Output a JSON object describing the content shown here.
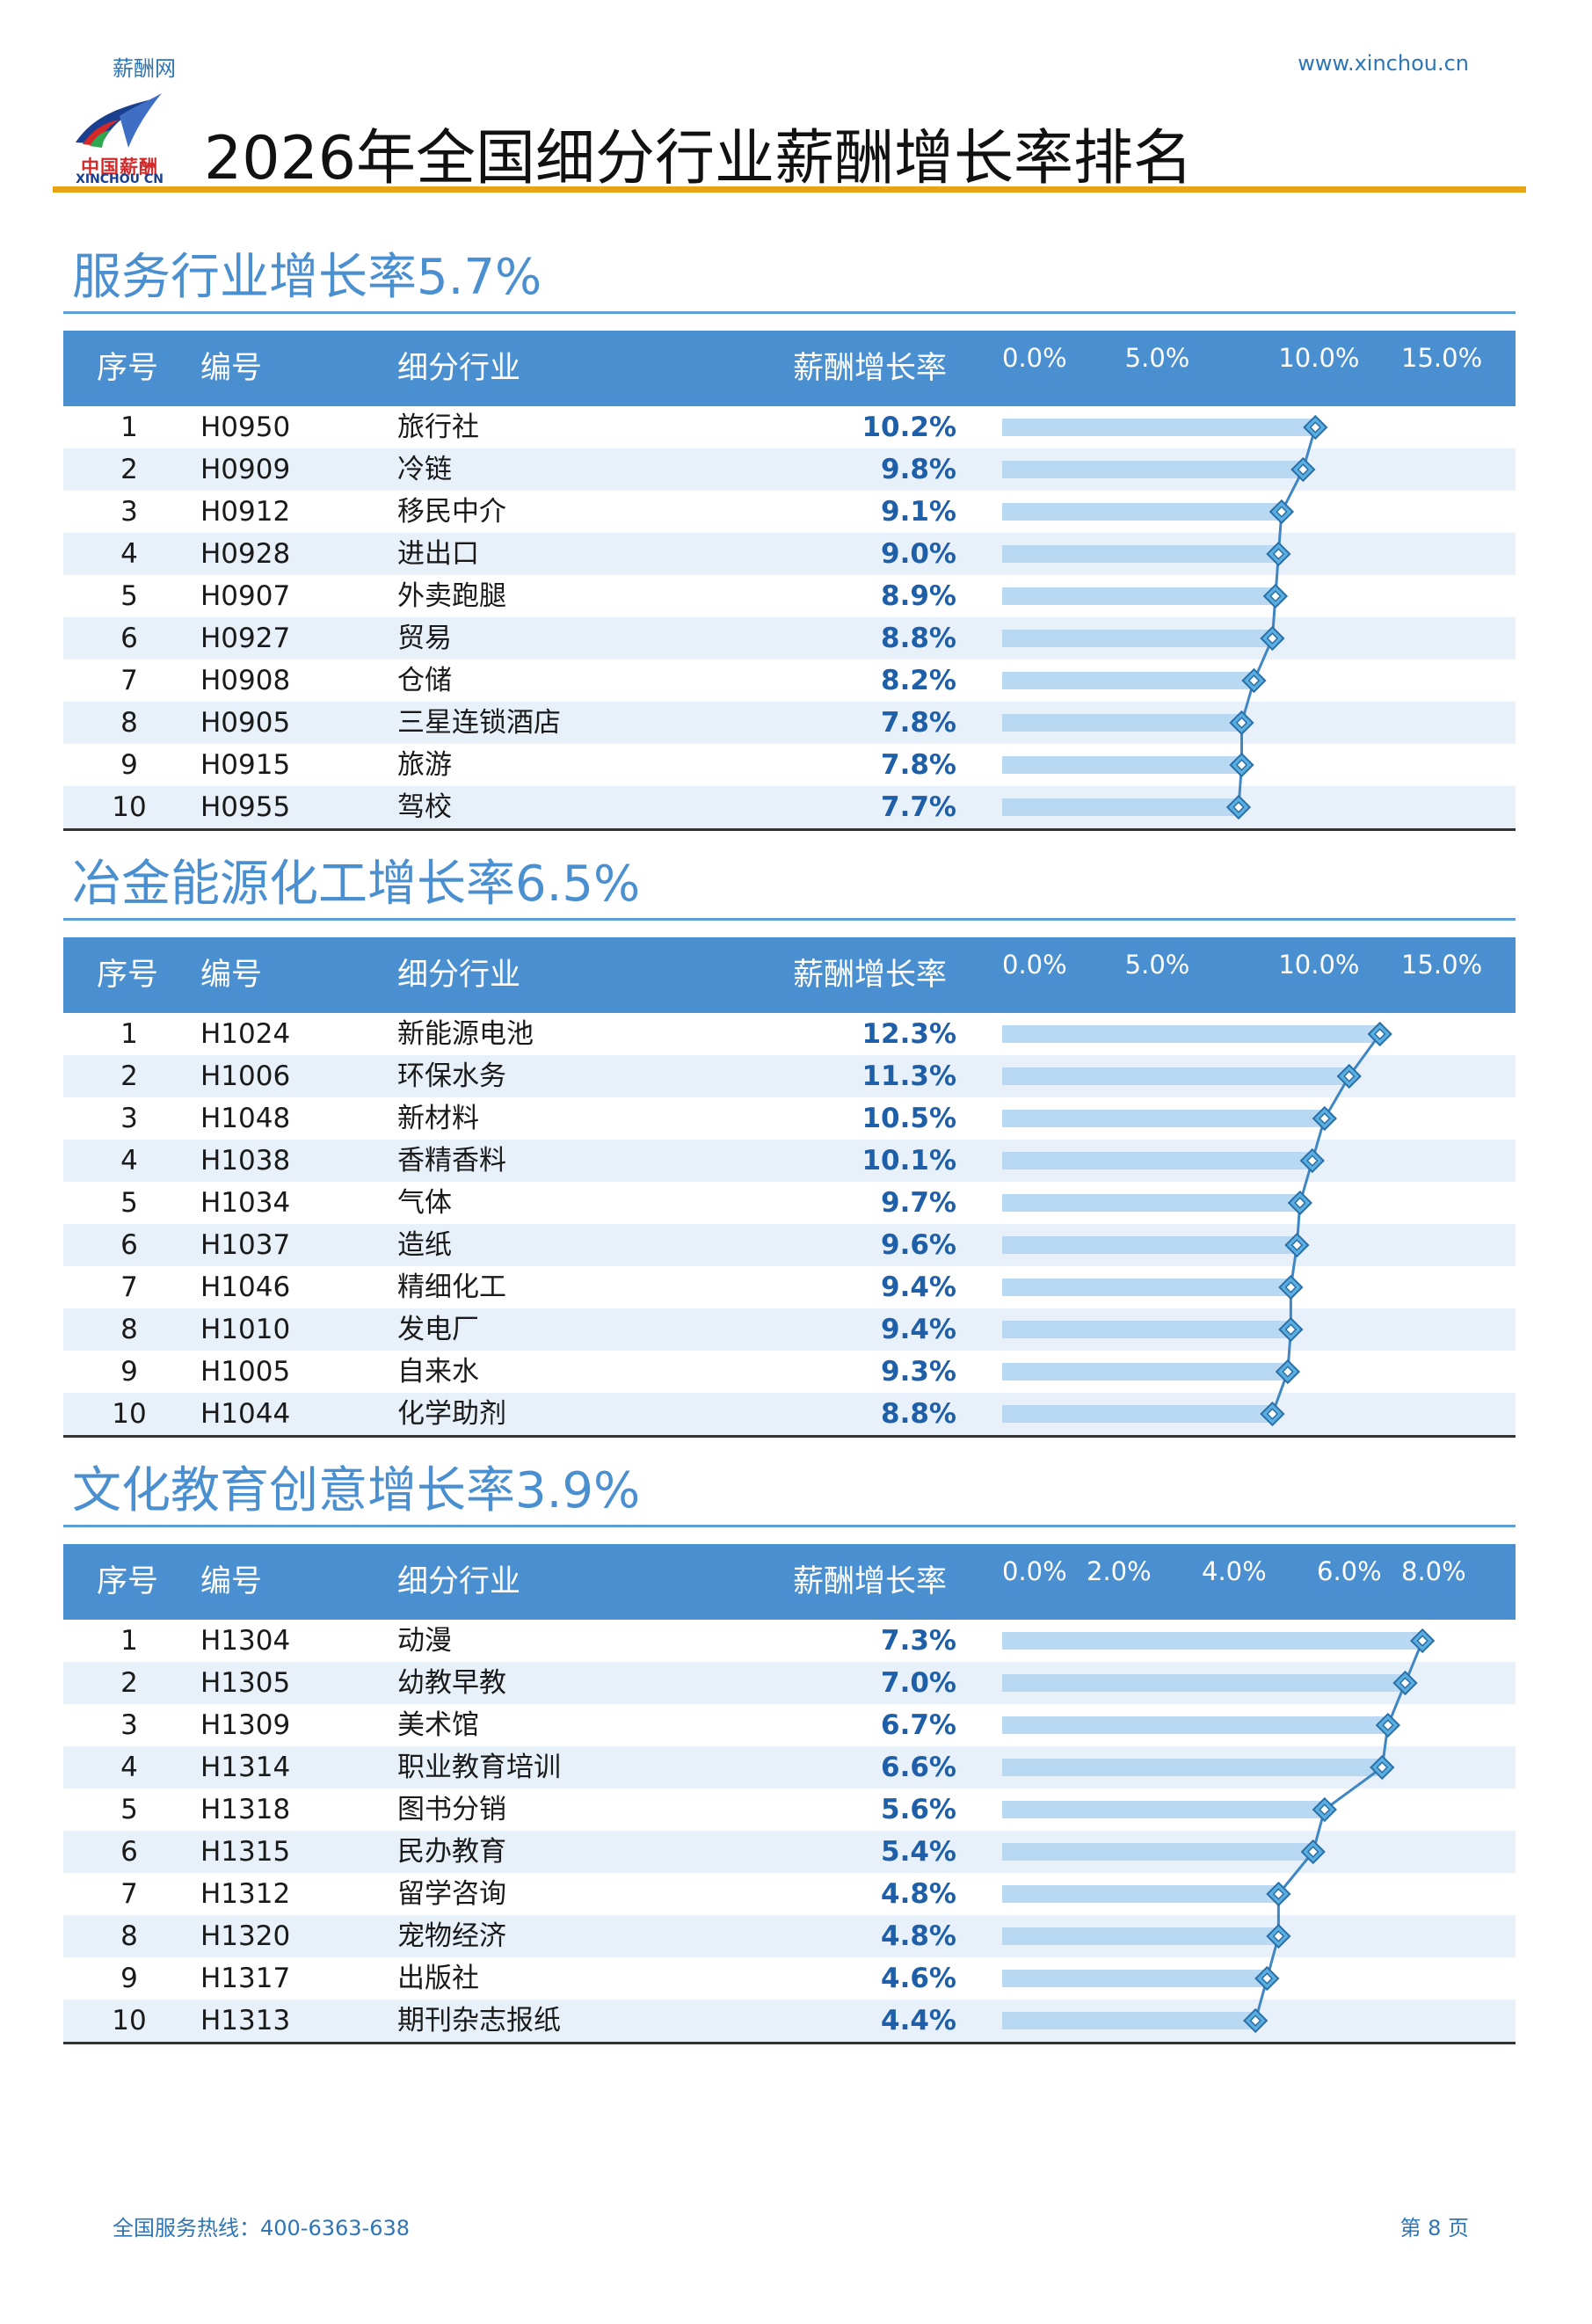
{
  "header": {
    "site_name": "薪酬网",
    "site_url": "www.xinchou.cn",
    "logo_text_cn": "中国薪酬",
    "logo_text_en": "XINCHOU CN",
    "title": "2026年全国细分行业薪酬增长率排名"
  },
  "table_headers": {
    "index": "序号",
    "code": "编号",
    "industry": "细分行业",
    "rate": "薪酬增长率"
  },
  "sections": [
    {
      "title": "服务行业增长率5.7%",
      "ticks": [
        "0.0%",
        "5.0%",
        "10.0%",
        "15.0%"
      ],
      "tick_values": [
        0,
        5,
        10,
        15
      ],
      "rows": [
        {
          "index": "1",
          "code": "H0950",
          "name": "旅行社",
          "rate": "10.2%",
          "value": 10.2
        },
        {
          "index": "2",
          "code": "H0909",
          "name": "冷链",
          "rate": "9.8%",
          "value": 9.8
        },
        {
          "index": "3",
          "code": "H0912",
          "name": "移民中介",
          "rate": "9.1%",
          "value": 9.1
        },
        {
          "index": "4",
          "code": "H0928",
          "name": "进出口",
          "rate": "9.0%",
          "value": 9.0
        },
        {
          "index": "5",
          "code": "H0907",
          "name": "外卖跑腿",
          "rate": "8.9%",
          "value": 8.9
        },
        {
          "index": "6",
          "code": "H0927",
          "name": "贸易",
          "rate": "8.8%",
          "value": 8.8
        },
        {
          "index": "7",
          "code": "H0908",
          "name": "仓储",
          "rate": "8.2%",
          "value": 8.2
        },
        {
          "index": "8",
          "code": "H0905",
          "name": "三星连锁酒店",
          "rate": "7.8%",
          "value": 7.8
        },
        {
          "index": "9",
          "code": "H0915",
          "name": "旅游",
          "rate": "7.8%",
          "value": 7.8
        },
        {
          "index": "10",
          "code": "H0955",
          "name": "驾校",
          "rate": "7.7%",
          "value": 7.7
        }
      ]
    },
    {
      "title": "冶金能源化工增长率6.5%",
      "ticks": [
        "0.0%",
        "5.0%",
        "10.0%",
        "15.0%"
      ],
      "tick_values": [
        0,
        5,
        10,
        15
      ],
      "rows": [
        {
          "index": "1",
          "code": "H1024",
          "name": "新能源电池",
          "rate": "12.3%",
          "value": 12.3
        },
        {
          "index": "2",
          "code": "H1006",
          "name": "环保水务",
          "rate": "11.3%",
          "value": 11.3
        },
        {
          "index": "3",
          "code": "H1048",
          "name": "新材料",
          "rate": "10.5%",
          "value": 10.5
        },
        {
          "index": "4",
          "code": "H1038",
          "name": "香精香料",
          "rate": "10.1%",
          "value": 10.1
        },
        {
          "index": "5",
          "code": "H1034",
          "name": "气体",
          "rate": "9.7%",
          "value": 9.7
        },
        {
          "index": "6",
          "code": "H1037",
          "name": "造纸",
          "rate": "9.6%",
          "value": 9.6
        },
        {
          "index": "7",
          "code": "H1046",
          "name": "精细化工",
          "rate": "9.4%",
          "value": 9.4
        },
        {
          "index": "8",
          "code": "H1010",
          "name": "发电厂",
          "rate": "9.4%",
          "value": 9.4
        },
        {
          "index": "9",
          "code": "H1005",
          "name": "自来水",
          "rate": "9.3%",
          "value": 9.3
        },
        {
          "index": "10",
          "code": "H1044",
          "name": "化学助剂",
          "rate": "8.8%",
          "value": 8.8
        }
      ]
    },
    {
      "title": "文化教育创意增长率3.9%",
      "ticks": [
        "0.0%",
        "2.0%",
        "4.0%",
        "6.0%",
        "8.0%"
      ],
      "tick_values": [
        0,
        2,
        4,
        6,
        8
      ],
      "rows": [
        {
          "index": "1",
          "code": "H1304",
          "name": "动漫",
          "rate": "7.3%",
          "value": 7.3
        },
        {
          "index": "2",
          "code": "H1305",
          "name": "幼教早教",
          "rate": "7.0%",
          "value": 7.0
        },
        {
          "index": "3",
          "code": "H1309",
          "name": "美术馆",
          "rate": "6.7%",
          "value": 6.7
        },
        {
          "index": "4",
          "code": "H1314",
          "name": "职业教育培训",
          "rate": "6.6%",
          "value": 6.6
        },
        {
          "index": "5",
          "code": "H1318",
          "name": "图书分销",
          "rate": "5.6%",
          "value": 5.6
        },
        {
          "index": "6",
          "code": "H1315",
          "name": "民办教育",
          "rate": "5.4%",
          "value": 5.4
        },
        {
          "index": "7",
          "code": "H1312",
          "name": "留学咨询",
          "rate": "4.8%",
          "value": 4.8
        },
        {
          "index": "8",
          "code": "H1320",
          "name": "宠物经济",
          "rate": "4.8%",
          "value": 4.8
        },
        {
          "index": "9",
          "code": "H1317",
          "name": "出版社",
          "rate": "4.6%",
          "value": 4.6
        },
        {
          "index": "10",
          "code": "H1313",
          "name": "期刊杂志报纸",
          "rate": "4.4%",
          "value": 4.4
        }
      ]
    }
  ],
  "chart_data": [
    {
      "type": "bar",
      "title": "服务行业增长率5.7%",
      "categories": [
        "旅行社",
        "冷链",
        "移民中介",
        "进出口",
        "外卖跑腿",
        "贸易",
        "仓储",
        "三星连锁酒店",
        "旅游",
        "驾校"
      ],
      "values": [
        10.2,
        9.8,
        9.1,
        9.0,
        8.9,
        8.8,
        8.2,
        7.8,
        7.8,
        7.7
      ],
      "xlim": [
        0,
        15
      ],
      "ylabel": "薪酬增长率"
    },
    {
      "type": "bar",
      "title": "冶金能源化工增长率6.5%",
      "categories": [
        "新能源电池",
        "环保水务",
        "新材料",
        "香精香料",
        "气体",
        "造纸",
        "精细化工",
        "发电厂",
        "自来水",
        "化学助剂"
      ],
      "values": [
        12.3,
        11.3,
        10.5,
        10.1,
        9.7,
        9.6,
        9.4,
        9.4,
        9.3,
        8.8
      ],
      "xlim": [
        0,
        15
      ],
      "ylabel": "薪酬增长率"
    },
    {
      "type": "bar",
      "title": "文化教育创意增长率3.9%",
      "categories": [
        "动漫",
        "幼教早教",
        "美术馆",
        "职业教育培训",
        "图书分销",
        "民办教育",
        "留学咨询",
        "宠物经济",
        "出版社",
        "期刊杂志报纸"
      ],
      "values": [
        7.3,
        7.0,
        6.7,
        6.6,
        5.6,
        5.4,
        4.8,
        4.8,
        4.6,
        4.4
      ],
      "xlim": [
        0,
        8
      ],
      "ylabel": "薪酬增长率"
    }
  ],
  "colors": {
    "accent": "#4a8fd0",
    "bar": "#b9d8f2",
    "marker": "#5aaee0",
    "title_rule": "#e8a317"
  },
  "footer": {
    "hotline": "全国服务热线：400-6363-638",
    "page": "第 8 页"
  }
}
